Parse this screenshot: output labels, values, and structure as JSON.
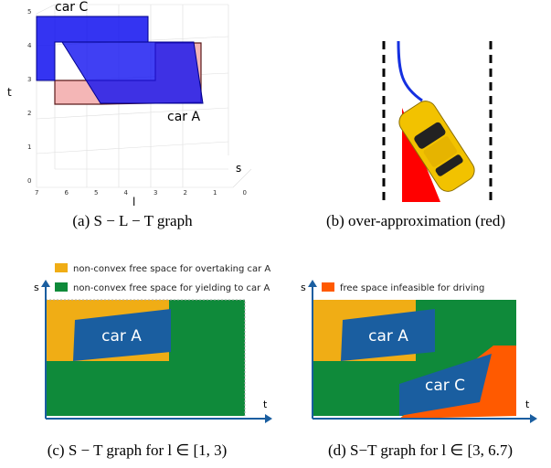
{
  "panel_a": {
    "labels": {
      "car_c": "car C",
      "car_a": "car A",
      "t_axis": "t",
      "l_axis": "l",
      "s_axis": "s"
    },
    "t_ticks": [
      "0",
      "1",
      "2",
      "3",
      "4",
      "5"
    ],
    "l_ticks": [
      "7",
      "6",
      "5",
      "4",
      "3",
      "2",
      "1",
      "0"
    ],
    "caption": "(a) S − L − T graph"
  },
  "panel_b": {
    "caption": "(b) over-approximation (red)"
  },
  "panel_c": {
    "legend": [
      "non-convex free space for overtaking car A",
      "non-convex free space for yielding to car A"
    ],
    "car_a": "car A",
    "s_axis": "s",
    "t_axis": "t",
    "caption": "(c) S − T graph for l ∈ [1, 3)"
  },
  "panel_d": {
    "legend": [
      "free space infeasible for driving"
    ],
    "car_a": "car A",
    "car_c": "car C",
    "s_axis": "s",
    "t_axis": "t",
    "caption": "(d) S−T graph for l ∈ [3, 6.7)"
  }
}
